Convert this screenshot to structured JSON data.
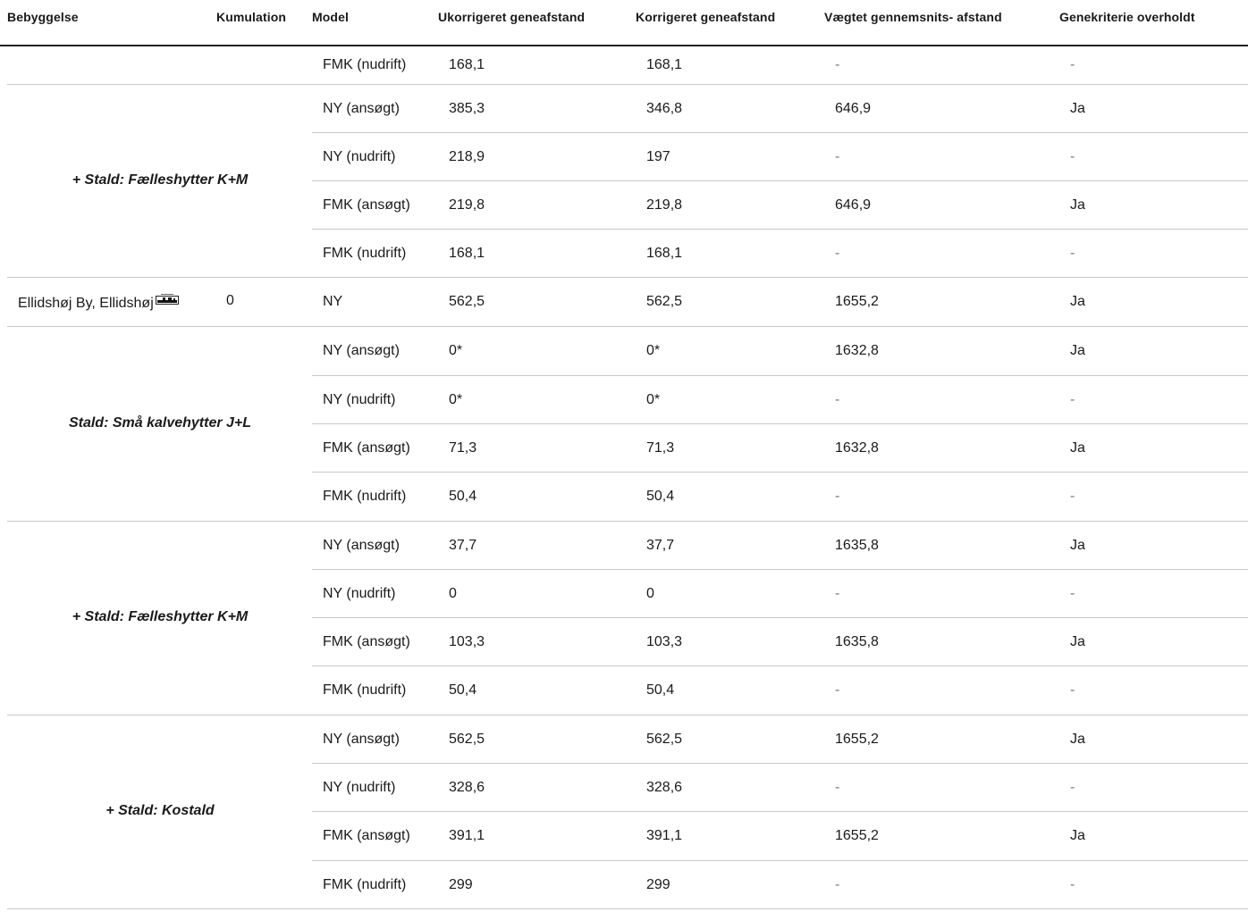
{
  "headers": {
    "bebyggelse": "Bebyggelse",
    "kumulation": "Kumulation",
    "model": "Model",
    "ukorrigeret": "Ukorrigeret geneafstand",
    "korrigeret": "Korrigeret geneafstand",
    "vaegtet": "Vægtet gennemsnits- afstand",
    "genekriterie": "Genekriterie overholdt"
  },
  "groups": {
    "g0": {
      "label": ""
    },
    "g1": {
      "label": "+ Stald: Fælleshytter K+M"
    },
    "g2": {
      "label": "Ellidshøj By, Ellidshøj",
      "kumulation": "0"
    },
    "g3": {
      "label": "Stald: Små kalvehytter J+L"
    },
    "g4": {
      "label": "+ Stald: Fælleshytter K+M"
    },
    "g5": {
      "label": "+ Stald: Kostald"
    }
  },
  "rows": [
    {
      "model": "FMK (nudrift)",
      "ukorr": "168,1",
      "korr": "168,1",
      "vaegtet": "-",
      "gene": "-"
    },
    {
      "model": "NY (ansøgt)",
      "ukorr": "385,3",
      "korr": "346,8",
      "vaegtet": "646,9",
      "gene": "Ja"
    },
    {
      "model": "NY (nudrift)",
      "ukorr": "218,9",
      "korr": "197",
      "vaegtet": "-",
      "gene": "-"
    },
    {
      "model": "FMK (ansøgt)",
      "ukorr": "219,8",
      "korr": "219,8",
      "vaegtet": "646,9",
      "gene": "Ja"
    },
    {
      "model": "FMK (nudrift)",
      "ukorr": "168,1",
      "korr": "168,1",
      "vaegtet": "-",
      "gene": "-"
    },
    {
      "model": "NY",
      "ukorr": "562,5",
      "korr": "562,5",
      "vaegtet": "1655,2",
      "gene": "Ja"
    },
    {
      "model": "NY (ansøgt)",
      "ukorr": "0*",
      "korr": "0*",
      "vaegtet": "1632,8",
      "gene": "Ja"
    },
    {
      "model": "NY (nudrift)",
      "ukorr": "0*",
      "korr": "0*",
      "vaegtet": "-",
      "gene": "-"
    },
    {
      "model": "FMK (ansøgt)",
      "ukorr": "71,3",
      "korr": "71,3",
      "vaegtet": "1632,8",
      "gene": "Ja"
    },
    {
      "model": "FMK (nudrift)",
      "ukorr": "50,4",
      "korr": "50,4",
      "vaegtet": "-",
      "gene": "-"
    },
    {
      "model": "NY (ansøgt)",
      "ukorr": "37,7",
      "korr": "37,7",
      "vaegtet": "1635,8",
      "gene": "Ja"
    },
    {
      "model": "NY (nudrift)",
      "ukorr": "0",
      "korr": "0",
      "vaegtet": "-",
      "gene": "-"
    },
    {
      "model": "FMK (ansøgt)",
      "ukorr": "103,3",
      "korr": "103,3",
      "vaegtet": "1635,8",
      "gene": "Ja"
    },
    {
      "model": "FMK (nudrift)",
      "ukorr": "50,4",
      "korr": "50,4",
      "vaegtet": "-",
      "gene": "-"
    },
    {
      "model": "NY (ansøgt)",
      "ukorr": "562,5",
      "korr": "562,5",
      "vaegtet": "1655,2",
      "gene": "Ja"
    },
    {
      "model": "NY (nudrift)",
      "ukorr": "328,6",
      "korr": "328,6",
      "vaegtet": "-",
      "gene": "-"
    },
    {
      "model": "FMK (ansøgt)",
      "ukorr": "391,1",
      "korr": "391,1",
      "vaegtet": "1655,2",
      "gene": "Ja"
    },
    {
      "model": "FMK (nudrift)",
      "ukorr": "299",
      "korr": "299",
      "vaegtet": "-",
      "gene": "-"
    }
  ],
  "icons": {
    "place_icon": "map-place-icon"
  }
}
